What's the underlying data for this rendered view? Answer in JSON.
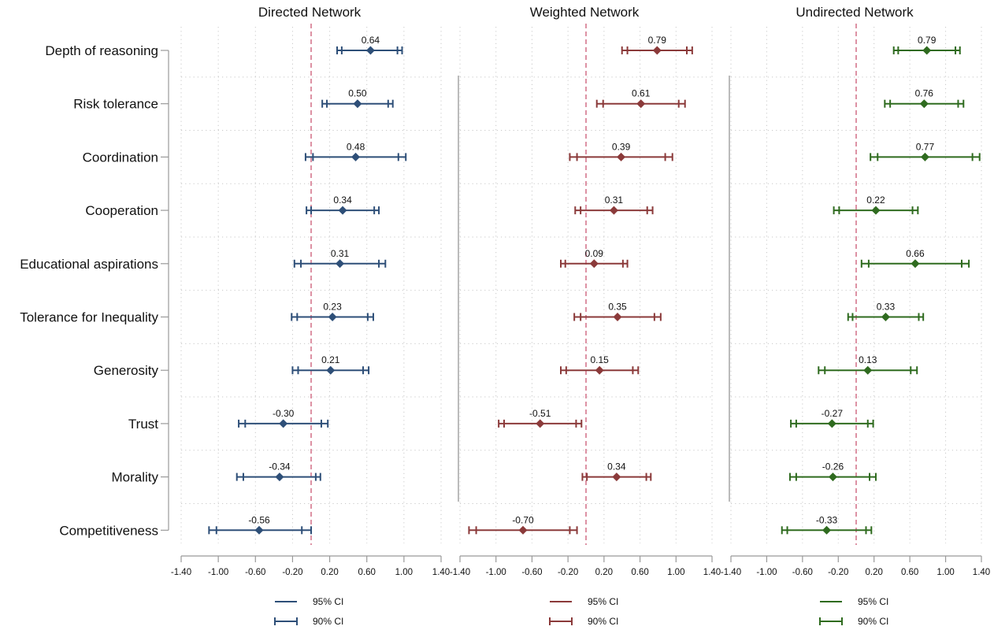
{
  "chart_data": {
    "type": "forest-plot",
    "categories": [
      "Depth of reasoning",
      "Risk tolerance",
      "Coordination",
      "Cooperation",
      "Educational aspirations",
      "Tolerance for Inequality",
      "Generosity",
      "Trust",
      "Morality",
      "Competitiveness"
    ],
    "xlim": [
      -1.4,
      1.4
    ],
    "xticks": [
      "-1.40",
      "-1.00",
      "-0.60",
      "-0.20",
      "0.20",
      "0.60",
      "1.00",
      "1.40"
    ],
    "reference_line_x": 0,
    "grid": true,
    "legend_labels": [
      "95% CI",
      "90% CI"
    ],
    "panels": [
      {
        "title": "Directed Network",
        "color": "#2e4f78",
        "points": [
          {
            "est": 0.64,
            "label": "0.64",
            "ci95": [
              0.28,
              0.98
            ],
            "ci90": [
              0.33,
              0.93
            ]
          },
          {
            "est": 0.5,
            "label": "0.50",
            "ci95": [
              0.12,
              0.88
            ],
            "ci90": [
              0.17,
              0.83
            ]
          },
          {
            "est": 0.48,
            "label": "0.48",
            "ci95": [
              -0.06,
              1.02
            ],
            "ci90": [
              0.02,
              0.94
            ]
          },
          {
            "est": 0.34,
            "label": "0.34",
            "ci95": [
              -0.05,
              0.73
            ],
            "ci90": [
              0.0,
              0.68
            ]
          },
          {
            "est": 0.31,
            "label": "0.31",
            "ci95": [
              -0.18,
              0.8
            ],
            "ci90": [
              -0.11,
              0.73
            ]
          },
          {
            "est": 0.23,
            "label": "0.23",
            "ci95": [
              -0.21,
              0.67
            ],
            "ci90": [
              -0.15,
              0.61
            ]
          },
          {
            "est": 0.21,
            "label": "0.21",
            "ci95": [
              -0.2,
              0.62
            ],
            "ci90": [
              -0.14,
              0.56
            ]
          },
          {
            "est": -0.3,
            "label": "-0.30",
            "ci95": [
              -0.78,
              0.18
            ],
            "ci90": [
              -0.71,
              0.11
            ]
          },
          {
            "est": -0.34,
            "label": "-0.34",
            "ci95": [
              -0.8,
              0.1
            ],
            "ci90": [
              -0.73,
              0.05
            ]
          },
          {
            "est": -0.56,
            "label": "-0.56",
            "ci95": [
              -1.1,
              0.0
            ],
            "ci90": [
              -1.02,
              -0.1
            ]
          }
        ]
      },
      {
        "title": "Weighted Network",
        "color": "#8b3a3a",
        "points": [
          {
            "est": 0.79,
            "label": "0.79",
            "ci95": [
              0.4,
              1.18
            ],
            "ci90": [
              0.46,
              1.12
            ]
          },
          {
            "est": 0.61,
            "label": "0.61",
            "ci95": [
              0.12,
              1.1
            ],
            "ci90": [
              0.19,
              1.03
            ]
          },
          {
            "est": 0.39,
            "label": "0.39",
            "ci95": [
              -0.18,
              0.96
            ],
            "ci90": [
              -0.1,
              0.88
            ]
          },
          {
            "est": 0.31,
            "label": "0.31",
            "ci95": [
              -0.12,
              0.74
            ],
            "ci90": [
              -0.06,
              0.68
            ]
          },
          {
            "est": 0.09,
            "label": "0.09",
            "ci95": [
              -0.28,
              0.46
            ],
            "ci90": [
              -0.23,
              0.41
            ]
          },
          {
            "est": 0.35,
            "label": "0.35",
            "ci95": [
              -0.13,
              0.83
            ],
            "ci90": [
              -0.06,
              0.76
            ]
          },
          {
            "est": 0.15,
            "label": "0.15",
            "ci95": [
              -0.28,
              0.58
            ],
            "ci90": [
              -0.22,
              0.52
            ]
          },
          {
            "est": -0.51,
            "label": "-0.51",
            "ci95": [
              -0.97,
              -0.05
            ],
            "ci90": [
              -0.91,
              -0.11
            ]
          },
          {
            "est": 0.34,
            "label": "0.34",
            "ci95": [
              -0.04,
              0.72
            ],
            "ci90": [
              0.01,
              0.67
            ]
          },
          {
            "est": -0.7,
            "label": "-0.70",
            "ci95": [
              -1.3,
              -0.1
            ],
            "ci90": [
              -1.22,
              -0.18
            ]
          }
        ]
      },
      {
        "title": "Undirected Network",
        "color": "#2f6b1f",
        "points": [
          {
            "est": 0.79,
            "label": "0.79",
            "ci95": [
              0.42,
              1.16
            ],
            "ci90": [
              0.47,
              1.11
            ]
          },
          {
            "est": 0.76,
            "label": "0.76",
            "ci95": [
              0.32,
              1.2
            ],
            "ci90": [
              0.38,
              1.14
            ]
          },
          {
            "est": 0.77,
            "label": "0.77",
            "ci95": [
              0.16,
              1.38
            ],
            "ci90": [
              0.24,
              1.3
            ]
          },
          {
            "est": 0.22,
            "label": "0.22",
            "ci95": [
              -0.25,
              0.69
            ],
            "ci90": [
              -0.19,
              0.63
            ]
          },
          {
            "est": 0.66,
            "label": "0.66",
            "ci95": [
              0.06,
              1.26
            ],
            "ci90": [
              0.14,
              1.18
            ]
          },
          {
            "est": 0.33,
            "label": "0.33",
            "ci95": [
              -0.09,
              0.75
            ],
            "ci90": [
              -0.04,
              0.7
            ]
          },
          {
            "est": 0.13,
            "label": "0.13",
            "ci95": [
              -0.42,
              0.68
            ],
            "ci90": [
              -0.35,
              0.61
            ]
          },
          {
            "est": -0.27,
            "label": "-0.27",
            "ci95": [
              -0.73,
              0.19
            ],
            "ci90": [
              -0.67,
              0.13
            ]
          },
          {
            "est": -0.26,
            "label": "-0.26",
            "ci95": [
              -0.74,
              0.22
            ],
            "ci90": [
              -0.67,
              0.15
            ]
          },
          {
            "est": -0.33,
            "label": "-0.33",
            "ci95": [
              -0.83,
              0.17
            ],
            "ci90": [
              -0.77,
              0.11
            ]
          }
        ]
      }
    ]
  }
}
